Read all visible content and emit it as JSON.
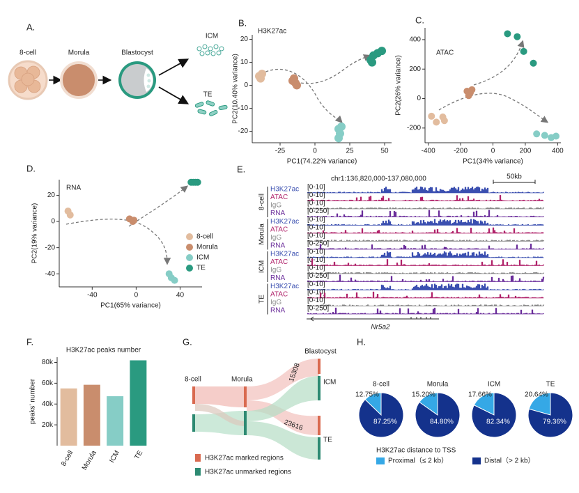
{
  "panel_labels": [
    "A.",
    "B.",
    "C.",
    "D.",
    "E.",
    "F.",
    "G.",
    "H."
  ],
  "embryo_diagram": {
    "stages": [
      "8-cell",
      "Morula",
      "Blastocyst"
    ],
    "lineages": [
      "ICM",
      "TE"
    ]
  },
  "chart_data": [
    {
      "type": "scatter",
      "title": "H3K27ac",
      "title_color": "#3a4fb0",
      "x_label": "PC1(74.22% variance)",
      "y_label": "PC2(10.40% variance)",
      "xlim": [
        -45,
        55
      ],
      "xticks": [
        -25,
        0,
        25,
        50
      ],
      "ylim": [
        -25,
        22
      ],
      "yticks": [
        -20,
        -10,
        0,
        10,
        20
      ],
      "series": [
        {
          "color": "#e2bc9e",
          "x": [
            -40,
            -38,
            -39
          ],
          "values": [
            4,
            5,
            3
          ]
        },
        {
          "color": "#c98d6d",
          "x": [
            -16,
            -14,
            -15,
            -13
          ],
          "values": [
            2,
            1,
            3,
            0
          ]
        },
        {
          "color": "#86cdc6",
          "x": [
            17,
            18,
            19,
            17
          ],
          "values": [
            -19,
            -21,
            -18,
            -23
          ]
        },
        {
          "color": "#2a9a80",
          "x": [
            40,
            42,
            45,
            48,
            41
          ],
          "values": [
            11,
            13,
            14,
            15,
            10
          ]
        }
      ]
    },
    {
      "type": "scatter",
      "title": "ATAC",
      "title_color": "#b0226a",
      "x_label": "PC1(34% variance)",
      "y_label": "PC2(26% variance)",
      "xlim": [
        -420,
        420
      ],
      "xticks": [
        -400,
        -200,
        0,
        200,
        400
      ],
      "ylim": [
        -300,
        480
      ],
      "yticks": [
        -200,
        0,
        200,
        400
      ],
      "series": [
        {
          "color": "#e2bc9e",
          "x": [
            -380,
            -350,
            -300,
            -310
          ],
          "values": [
            -120,
            -160,
            -150,
            -125
          ]
        },
        {
          "color": "#c98d6d",
          "x": [
            -160,
            -140,
            -150,
            -130
          ],
          "values": [
            50,
            40,
            20,
            60
          ]
        },
        {
          "color": "#86cdc6",
          "x": [
            270,
            320,
            360,
            390
          ],
          "values": [
            -240,
            -250,
            -265,
            -255
          ]
        },
        {
          "color": "#2a9a80",
          "x": [
            90,
            150,
            190,
            250
          ],
          "values": [
            440,
            420,
            320,
            240
          ]
        }
      ]
    },
    {
      "type": "scatter",
      "title": "RNA",
      "title_color": "#6a2c9a",
      "x_label": "PC1(65% variance)",
      "y_label": "PC2(19% variance)",
      "xlim": [
        -70,
        60
      ],
      "xticks": [
        -40,
        0,
        40
      ],
      "ylim": [
        -50,
        32
      ],
      "yticks": [
        -40,
        -20,
        0,
        20
      ],
      "legend": "right",
      "series": [
        {
          "name": "8-cell",
          "color": "#e2bc9e",
          "x": [
            -62,
            -60
          ],
          "values": [
            8,
            5
          ]
        },
        {
          "name": "Morula",
          "color": "#c98d6d",
          "x": [
            -6,
            -3,
            -2
          ],
          "values": [
            2,
            0,
            1
          ]
        },
        {
          "name": "ICM",
          "color": "#86cdc6",
          "x": [
            30,
            32,
            35
          ],
          "values": [
            -40,
            -43,
            -45
          ]
        },
        {
          "name": "TE",
          "color": "#2a9a80",
          "x": [
            50,
            52,
            54,
            56
          ],
          "values": [
            30,
            30,
            30,
            30
          ]
        }
      ]
    },
    {
      "type": "bar",
      "title": "H3K27ac peaks number",
      "y_label": "peaks' number",
      "categories": [
        "8-cell",
        "Morula",
        "ICM",
        "TE"
      ],
      "values": [
        55000,
        58500,
        47500,
        82000
      ],
      "colors": [
        "#e2bc9e",
        "#c98d6d",
        "#86cdc6",
        "#2a9a80"
      ],
      "ylim": [
        0,
        85000
      ],
      "yticks": [
        {
          "value": 20000,
          "label": "20k"
        },
        {
          "value": 40000,
          "label": "40k"
        },
        {
          "value": 60000,
          "label": "60k"
        },
        {
          "value": 80000,
          "label": "80k"
        }
      ]
    },
    {
      "type": "pie",
      "legend_title": "H3K27ac distance to TSS",
      "labels": [
        "Proximal（≤ 2 kb）",
        "Distal（> 2 kb）"
      ],
      "colors": [
        "#35a8e6",
        "#14328c"
      ],
      "pies": [
        {
          "title": "8-cell",
          "values": [
            12.75,
            87.25
          ],
          "value_labels": [
            "12.75%",
            "87.25%"
          ]
        },
        {
          "title": "Morula",
          "values": [
            15.2,
            84.8
          ],
          "value_labels": [
            "15.20%",
            "84.80%"
          ]
        },
        {
          "title": "ICM",
          "values": [
            17.66,
            82.34
          ],
          "value_labels": [
            "17.66%",
            "82.34%"
          ]
        },
        {
          "title": "TE",
          "values": [
            20.64,
            79.36
          ],
          "value_labels": [
            "20.64%",
            "79.36%"
          ]
        }
      ]
    }
  ],
  "genome_tracks": {
    "region": "chr1:136,820,000-137,080,000",
    "scale": "50kb",
    "gene": "Nr5a2",
    "track_colors": [
      "#3a4fb0",
      "#b0226a",
      "#888888",
      "#6a2c9a"
    ],
    "groups": [
      {
        "name": "8-cell",
        "tracks": [
          {
            "name": "H3K27ac",
            "range": "[0-10]"
          },
          {
            "name": "ATAC",
            "range": "[0-10]"
          },
          {
            "name": "IgG",
            "range": "[0-10]"
          },
          {
            "name": "RNA",
            "range": "[0-250]"
          }
        ]
      },
      {
        "name": "Morula",
        "tracks": [
          {
            "name": "H3K27ac",
            "range": "[0-10]"
          },
          {
            "name": "ATAC",
            "range": "[0-10]"
          },
          {
            "name": "IgG",
            "range": "[0-10]"
          },
          {
            "name": "RNA",
            "range": "[0-250]"
          }
        ]
      },
      {
        "name": "ICM",
        "tracks": [
          {
            "name": "H3K27ac",
            "range": "[0-10]"
          },
          {
            "name": "ATAC",
            "range": "[0-10]"
          },
          {
            "name": "IgG",
            "range": "[0-10]"
          },
          {
            "name": "RNA",
            "range": "[0-250]"
          }
        ]
      },
      {
        "name": "TE",
        "tracks": [
          {
            "name": "H3K27ac",
            "range": "[0-10]"
          },
          {
            "name": "ATAC",
            "range": "[0-10]"
          },
          {
            "name": "IgG",
            "range": "[0-10]"
          },
          {
            "name": "RNA",
            "range": "[0-250]"
          }
        ]
      }
    ]
  },
  "sankey": {
    "nodes": [
      "8-cell",
      "Morula",
      "Blastocyst",
      "ICM",
      "TE"
    ],
    "flow_labels": [
      15308,
      23616
    ],
    "legend": [
      "H3K27ac marked regions",
      "H3K27ac unmarked regions"
    ]
  }
}
